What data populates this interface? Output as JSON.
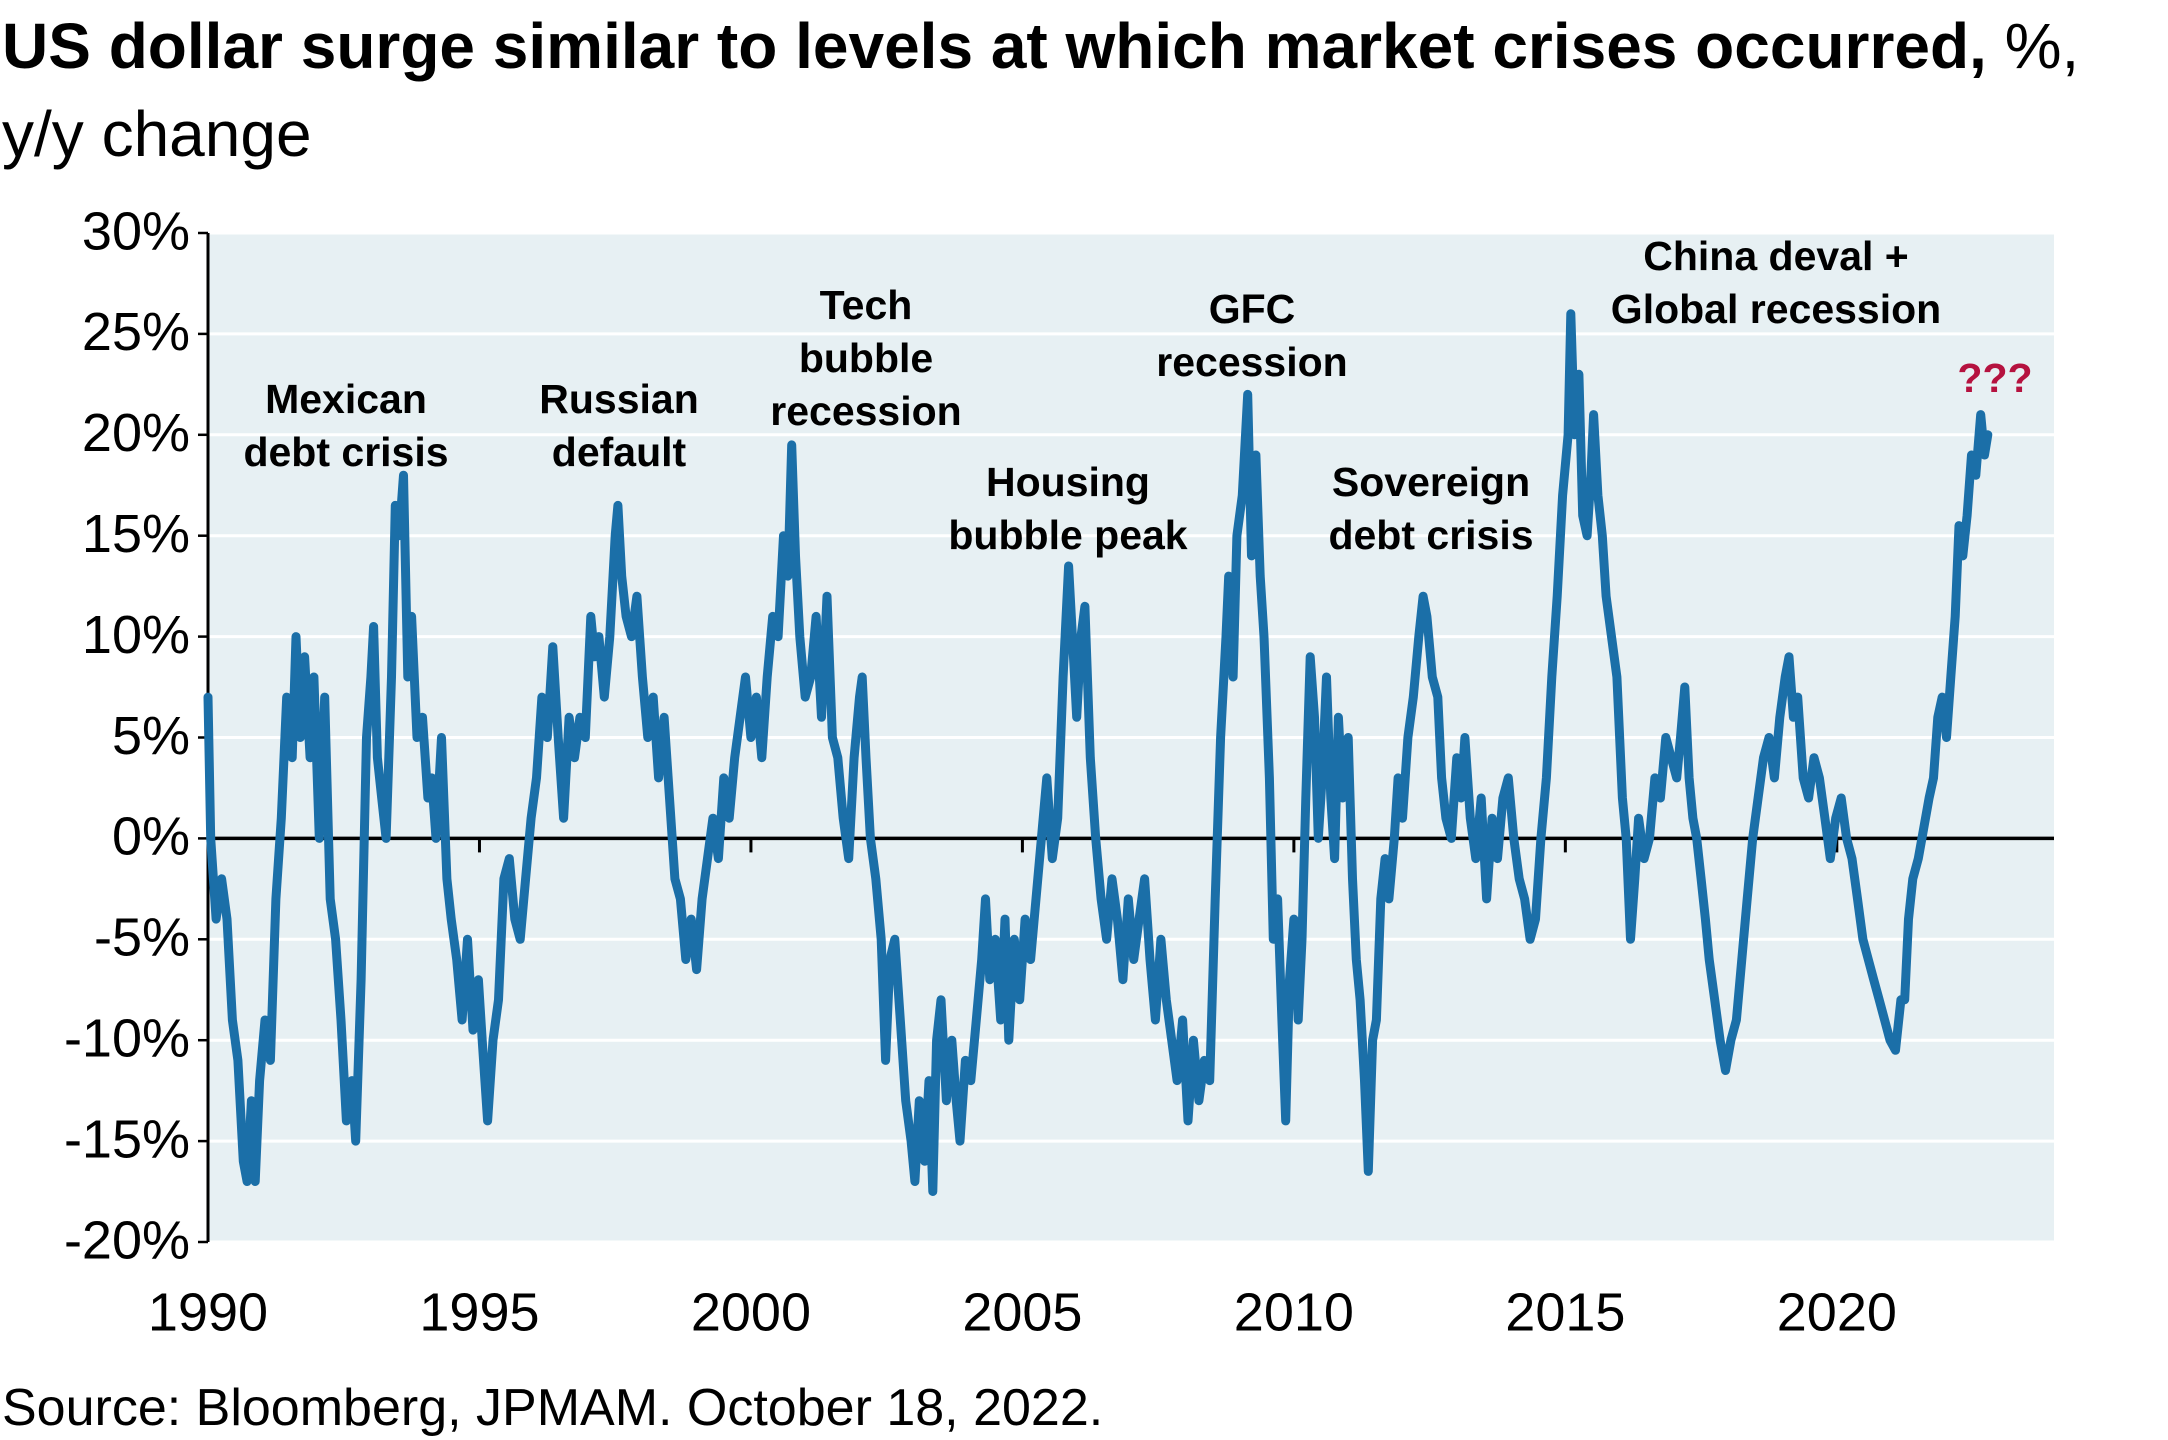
{
  "chart_data": {
    "type": "line",
    "title": "US dollar surge similar to levels at which market crises occurred,",
    "subtitle": "%, y/y change",
    "source": "Source: Bloomberg, JPMAM. October 18, 2022.",
    "xlim": [
      1990,
      2024
    ],
    "xticks": [
      1990,
      1995,
      2000,
      2005,
      2010,
      2015,
      2020
    ],
    "ylim": [
      -20,
      30
    ],
    "yticks": [
      {
        "value": -20,
        "label": "-20%"
      },
      {
        "value": -15,
        "label": "-15%"
      },
      {
        "value": -10,
        "label": "-10%"
      },
      {
        "value": -5,
        "label": "-5%"
      },
      {
        "value": 0,
        "label": "0%"
      },
      {
        "value": 5,
        "label": "5%"
      },
      {
        "value": 10,
        "label": "10%"
      },
      {
        "value": 15,
        "label": "15%"
      },
      {
        "value": 20,
        "label": "20%"
      },
      {
        "value": 25,
        "label": "25%"
      },
      {
        "value": 30,
        "label": "30%"
      }
    ],
    "grid": true,
    "annotations": [
      {
        "lines": [
          "Mexican",
          "debt crisis"
        ],
        "color": "#000000"
      },
      {
        "lines": [
          "Russian",
          "default"
        ],
        "color": "#000000"
      },
      {
        "lines": [
          "Tech",
          "bubble",
          "recession"
        ],
        "color": "#000000"
      },
      {
        "lines": [
          "Housing",
          "bubble peak"
        ],
        "color": "#000000"
      },
      {
        "lines": [
          "GFC",
          "recession"
        ],
        "color": "#000000"
      },
      {
        "lines": [
          "Sovereign",
          "debt crisis"
        ],
        "color": "#000000"
      },
      {
        "lines": [
          "China deval +",
          "Global recession"
        ],
        "color": "#000000"
      },
      {
        "lines": [
          "???"
        ],
        "color": "#b5123f"
      }
    ],
    "series": [
      {
        "name": "US dollar",
        "color": "#1b6fa8",
        "x": [
          1990.0,
          1990.05,
          1990.15,
          1990.25,
          1990.35,
          1990.45,
          1990.55,
          1990.65,
          1990.72,
          1990.8,
          1990.87,
          1990.95,
          1991.05,
          1991.15,
          1991.25,
          1991.35,
          1991.45,
          1991.55,
          1991.62,
          1991.7,
          1991.78,
          1991.88,
          1991.95,
          1992.05,
          1992.15,
          1992.25,
          1992.35,
          1992.45,
          1992.55,
          1992.65,
          1992.72,
          1992.82,
          1992.92,
          1993.0,
          1993.05,
          1993.12,
          1993.2,
          1993.28,
          1993.38,
          1993.45,
          1993.52,
          1993.6,
          1993.68,
          1993.75,
          1993.85,
          1993.95,
          1994.05,
          1994.12,
          1994.2,
          1994.3,
          1994.4,
          1994.48,
          1994.58,
          1994.68,
          1994.78,
          1994.88,
          1994.98,
          1995.05,
          1995.15,
          1995.25,
          1995.35,
          1995.45,
          1995.55,
          1995.65,
          1995.75,
          1995.85,
          1995.95,
          1996.05,
          1996.15,
          1996.25,
          1996.35,
          1996.45,
          1996.55,
          1996.65,
          1996.75,
          1996.85,
          1996.95,
          1997.05,
          1997.12,
          1997.2,
          1997.3,
          1997.4,
          1997.5,
          1997.55,
          1997.62,
          1997.7,
          1997.8,
          1997.9,
          1998.0,
          1998.1,
          1998.2,
          1998.3,
          1998.4,
          1998.5,
          1998.6,
          1998.7,
          1998.8,
          1998.9,
          1999.0,
          1999.1,
          1999.2,
          1999.3,
          1999.4,
          1999.5,
          1999.6,
          1999.7,
          1999.8,
          1999.9,
          2000.0,
          2000.1,
          2000.2,
          2000.3,
          2000.4,
          2000.5,
          2000.6,
          2000.68,
          2000.75,
          2000.82,
          2000.9,
          2001.0,
          2001.1,
          2001.2,
          2001.3,
          2001.4,
          2001.5,
          2001.6,
          2001.7,
          2001.8,
          2001.9,
          2002.0,
          2002.05,
          2002.12,
          2002.2,
          2002.3,
          2002.4,
          2002.48,
          2002.56,
          2002.65,
          2002.75,
          2002.85,
          2002.95,
          2003.02,
          2003.1,
          2003.2,
          2003.28,
          2003.35,
          2003.42,
          2003.5,
          2003.6,
          2003.7,
          2003.78,
          2003.85,
          2003.95,
          2004.05,
          2004.15,
          2004.25,
          2004.32,
          2004.4,
          2004.5,
          2004.6,
          2004.68,
          2004.75,
          2004.85,
          2004.95,
          2005.05,
          2005.15,
          2005.25,
          2005.35,
          2005.45,
          2005.55,
          2005.65,
          2005.75,
          2005.85,
          2005.92,
          2006.0,
          2006.08,
          2006.15,
          2006.25,
          2006.35,
          2006.45,
          2006.55,
          2006.65,
          2006.75,
          2006.85,
          2006.95,
          2007.05,
          2007.15,
          2007.25,
          2007.35,
          2007.45,
          2007.55,
          2007.65,
          2007.75,
          2007.85,
          2007.95,
          2008.05,
          2008.15,
          2008.25,
          2008.35,
          2008.45,
          2008.55,
          2008.65,
          2008.75,
          2008.8,
          2008.88,
          2008.95,
          2009.05,
          2009.15,
          2009.22,
          2009.3,
          2009.38,
          2009.45,
          2009.55,
          2009.62,
          2009.7,
          2009.78,
          2009.85,
          2009.92,
          2010.0,
          2010.08,
          2010.15,
          2010.22,
          2010.3,
          2010.38,
          2010.45,
          2010.52,
          2010.6,
          2010.68,
          2010.75,
          2010.82,
          2010.9,
          2011.0,
          2011.08,
          2011.15,
          2011.22,
          2011.3,
          2011.37,
          2011.45,
          2011.52,
          2011.6,
          2011.68,
          2011.75,
          2011.85,
          2011.92,
          2012.0,
          2012.1,
          2012.2,
          2012.3,
          2012.38,
          2012.45,
          2012.55,
          2012.65,
          2012.72,
          2012.8,
          2012.9,
          2013.0,
          2013.08,
          2013.15,
          2013.25,
          2013.35,
          2013.45,
          2013.55,
          2013.65,
          2013.75,
          2013.85,
          2013.95,
          2014.05,
          2014.15,
          2014.25,
          2014.35,
          2014.45,
          2014.55,
          2014.65,
          2014.75,
          2014.85,
          2014.95,
          2015.05,
          2015.1,
          2015.17,
          2015.25,
          2015.32,
          2015.4,
          2015.47,
          2015.52,
          2015.6,
          2015.68,
          2015.75,
          2015.85,
          2015.95,
          2016.05,
          2016.12,
          2016.2,
          2016.28,
          2016.35,
          2016.45,
          2016.55,
          2016.65,
          2016.75,
          2016.85,
          2016.95,
          2017.05,
          2017.12,
          2017.2,
          2017.28,
          2017.35,
          2017.42,
          2017.5,
          2017.58,
          2017.65,
          2017.75,
          2017.85,
          2017.95,
          2018.05,
          2018.15,
          2018.25,
          2018.35,
          2018.45,
          2018.55,
          2018.65,
          2018.75,
          2018.85,
          2018.95,
          2019.05,
          2019.12,
          2019.2,
          2019.28,
          2019.38,
          2019.48,
          2019.58,
          2019.68,
          2019.78,
          2019.88,
          2019.98,
          2020.08,
          2020.18,
          2020.28,
          2020.38,
          2020.48,
          2020.58,
          2020.68,
          2020.78,
          2020.88,
          2020.98,
          2021.08,
          2021.18,
          2021.25,
          2021.32,
          2021.4,
          2021.5,
          2021.6,
          2021.7,
          2021.78,
          2021.86,
          2021.94,
          2022.02,
          2022.1,
          2022.18,
          2022.25,
          2022.32,
          2022.4,
          2022.48,
          2022.56,
          2022.65,
          2022.72,
          2022.78
        ],
        "values": [
          7,
          0,
          -4,
          -2,
          -4,
          -9,
          -11,
          -16,
          -17,
          -13,
          -17,
          -12,
          -9,
          -11,
          -3,
          1,
          7,
          4,
          10,
          5,
          9,
          4,
          8,
          0,
          7,
          -3,
          -5,
          -9,
          -14,
          -12,
          -15,
          -7,
          5,
          8,
          10.5,
          4,
          2,
          0,
          8,
          16.5,
          15,
          18,
          8,
          11,
          5,
          6,
          2,
          3,
          0,
          5,
          -2,
          -4,
          -6,
          -9,
          -5,
          -9.5,
          -7,
          -10,
          -14,
          -10,
          -8,
          -2,
          -1,
          -4,
          -5,
          -2,
          1,
          3,
          7,
          5,
          9.5,
          5,
          1,
          6,
          4,
          6,
          5,
          11,
          9,
          10,
          7,
          10,
          15,
          16.5,
          13,
          11,
          10,
          12,
          8,
          5,
          7,
          3,
          6,
          2,
          -2,
          -3,
          -6,
          -4,
          -6.5,
          -3,
          -1,
          1,
          -1,
          3,
          1,
          4,
          6,
          8,
          5,
          7,
          4,
          8,
          11,
          10,
          15,
          13,
          19.5,
          14,
          10,
          7,
          8,
          11,
          6,
          12,
          5,
          4,
          1,
          -1,
          4,
          7,
          8,
          4,
          0,
          -2,
          -5,
          -11,
          -6,
          -5,
          -9,
          -13,
          -15,
          -17,
          -13,
          -16,
          -12,
          -17.5,
          -10,
          -8,
          -13,
          -10,
          -13,
          -15,
          -11,
          -12,
          -9,
          -6,
          -3,
          -7,
          -5,
          -9,
          -4,
          -10,
          -5,
          -8,
          -4,
          -6,
          -3,
          0,
          3,
          -1,
          1,
          8,
          13.5,
          10,
          6,
          10,
          11.5,
          4,
          0,
          -3,
          -5,
          -2,
          -4,
          -7,
          -3,
          -6,
          -4,
          -2,
          -6,
          -9,
          -5,
          -8,
          -10,
          -12,
          -9,
          -14,
          -10,
          -13,
          -11,
          -12,
          -3,
          5,
          10,
          13,
          8,
          15,
          17,
          22,
          14,
          19,
          13,
          10,
          3,
          -5,
          -3,
          -9,
          -14,
          -7,
          -4,
          -9,
          -5,
          2,
          9,
          6,
          0,
          3,
          8,
          2,
          -1,
          6,
          2,
          5,
          -2,
          -6,
          -8,
          -12,
          -16.5,
          -10,
          -9,
          -3,
          -1,
          -3,
          0,
          3,
          1,
          5,
          7,
          10,
          12,
          11,
          8,
          7,
          3,
          1,
          0,
          4,
          2,
          5,
          1,
          -1,
          2,
          -3,
          1,
          -1,
          2,
          3,
          0,
          -2,
          -3,
          -5,
          -4,
          0,
          3,
          8,
          12,
          17,
          20,
          26,
          20,
          23,
          16,
          15,
          18,
          21,
          17,
          15,
          12,
          10,
          8,
          2,
          0,
          -5,
          -2,
          1,
          -1,
          0,
          3,
          2,
          5,
          4,
          3,
          5,
          7.5,
          3,
          1,
          0,
          -2,
          -4,
          -6,
          -8,
          -10,
          -11.5,
          -10,
          -9,
          -6,
          -3,
          0,
          2,
          4,
          5,
          3,
          6,
          8,
          9,
          6,
          7,
          3,
          2,
          4,
          3,
          1,
          -1,
          1,
          2,
          0,
          -1,
          -3,
          -5,
          -6,
          -7,
          -8,
          -9,
          -10,
          -10.5,
          -8,
          -8,
          -4,
          -2,
          -1,
          0.5,
          2,
          3,
          6,
          7,
          5,
          8,
          11,
          15.5,
          14,
          16,
          19,
          18,
          21,
          19,
          20
        ]
      }
    ]
  }
}
